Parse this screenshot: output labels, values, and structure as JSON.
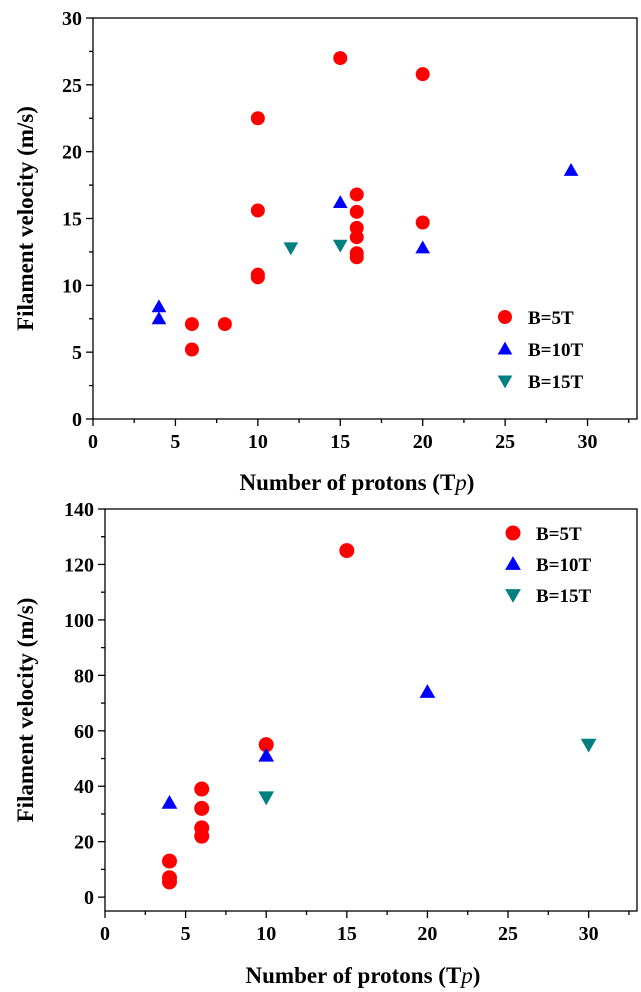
{
  "colors": {
    "B5T": "#ff0000",
    "B10T": "#0000ff",
    "B15T": "#008080"
  },
  "chart_data": [
    {
      "type": "scatter",
      "xlabel": "Number of protons (T",
      "xlabel_italic": "p",
      "xlabel_close": ")",
      "ylabel": "Filament velocity (m/s)",
      "xlim": [
        0,
        33
      ],
      "ylim": [
        0,
        30
      ],
      "xticks": [
        0,
        5,
        10,
        15,
        20,
        25,
        30
      ],
      "yticks": [
        0,
        5,
        10,
        15,
        20,
        25,
        30
      ],
      "legend_position": "right-lower",
      "series": [
        {
          "name": "B=5T",
          "marker": "circle",
          "color": "#ff0000",
          "points": [
            [
              6,
              7.1
            ],
            [
              6,
              5.2
            ],
            [
              8,
              7.1
            ],
            [
              10,
              22.5
            ],
            [
              10,
              15.6
            ],
            [
              10,
              10.8
            ],
            [
              10,
              10.6
            ],
            [
              15,
              27.0
            ],
            [
              16,
              16.8
            ],
            [
              16,
              15.5
            ],
            [
              16,
              14.3
            ],
            [
              16,
              13.6
            ],
            [
              16,
              12.4
            ],
            [
              16,
              12.1
            ],
            [
              20,
              25.8
            ],
            [
              20,
              14.7
            ]
          ]
        },
        {
          "name": "B=10T",
          "marker": "triangle-up",
          "color": "#0000ff",
          "points": [
            [
              4,
              8.4
            ],
            [
              4,
              7.5
            ],
            [
              15,
              16.2
            ],
            [
              20,
              12.8
            ],
            [
              29,
              18.6
            ]
          ]
        },
        {
          "name": "B=15T",
          "marker": "triangle-down",
          "color": "#008080",
          "points": [
            [
              12,
              12.8
            ],
            [
              15,
              13.0
            ]
          ]
        }
      ]
    },
    {
      "type": "scatter",
      "xlabel": "Number of protons (T",
      "xlabel_italic": "p",
      "xlabel_close": ")",
      "ylabel": "Filament velocity (m/s)",
      "xlim": [
        0,
        33
      ],
      "ylim": [
        -5,
        140
      ],
      "xticks": [
        0,
        5,
        10,
        15,
        20,
        25,
        30
      ],
      "yticks": [
        0,
        20,
        40,
        60,
        80,
        100,
        120,
        140
      ],
      "legend_position": "top-right",
      "series": [
        {
          "name": "B=5T",
          "marker": "circle",
          "color": "#ff0000",
          "points": [
            [
              4,
              13
            ],
            [
              4,
              7
            ],
            [
              4,
              5.5
            ],
            [
              6,
              39
            ],
            [
              6,
              32
            ],
            [
              6,
              25
            ],
            [
              6,
              22
            ],
            [
              10,
              55
            ],
            [
              15,
              125
            ]
          ]
        },
        {
          "name": "B=10T",
          "marker": "triangle-up",
          "color": "#0000ff",
          "points": [
            [
              4,
              34
            ],
            [
              10,
              51
            ],
            [
              20,
              74
            ]
          ]
        },
        {
          "name": "B=15T",
          "marker": "triangle-down",
          "color": "#008080",
          "points": [
            [
              10,
              36
            ],
            [
              30,
              55
            ]
          ]
        }
      ]
    }
  ]
}
